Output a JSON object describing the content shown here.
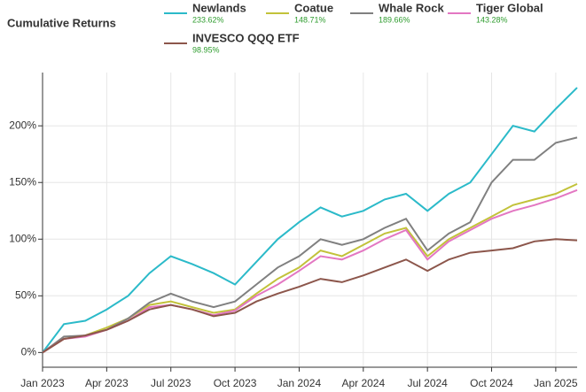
{
  "chart_data": {
    "type": "line",
    "title": "Cumulative Returns",
    "x": [
      "2023-01",
      "2023-02",
      "2023-03",
      "2023-04",
      "2023-05",
      "2023-06",
      "2023-07",
      "2023-08",
      "2023-09",
      "2023-10",
      "2023-11",
      "2023-12",
      "2024-01",
      "2024-02",
      "2024-03",
      "2024-04",
      "2024-05",
      "2024-06",
      "2024-07",
      "2024-08",
      "2024-09",
      "2024-10",
      "2024-11",
      "2024-12",
      "2025-01",
      "2025-02"
    ],
    "xlim": [
      "2023-01",
      "2025-02"
    ],
    "xticks": [
      {
        "value": "2023-01",
        "label": "Jan 2023"
      },
      {
        "value": "2023-04",
        "label": "Apr 2023"
      },
      {
        "value": "2023-07",
        "label": "Jul 2023"
      },
      {
        "value": "2023-10",
        "label": "Oct 2023"
      },
      {
        "value": "2024-01",
        "label": "Jan 2024"
      },
      {
        "value": "2024-04",
        "label": "Apr 2024"
      },
      {
        "value": "2024-07",
        "label": "Jul 2024"
      },
      {
        "value": "2024-10",
        "label": "Oct 2024"
      },
      {
        "value": "2025-01",
        "label": "Jan 2025"
      }
    ],
    "ylim": [
      -13,
      247
    ],
    "yticks": [
      {
        "value": 0,
        "label": "0%"
      },
      {
        "value": 50,
        "label": "50%"
      },
      {
        "value": 100,
        "label": "100%"
      },
      {
        "value": 150,
        "label": "150%"
      },
      {
        "value": 200,
        "label": "200%"
      }
    ],
    "grid": true,
    "series": [
      {
        "name": "Newlands",
        "color": "#2bbac9",
        "final_label": "233.62%",
        "values": [
          0,
          25,
          28,
          38,
          50,
          70,
          85,
          78,
          70,
          60,
          80,
          100,
          115,
          128,
          120,
          125,
          135,
          140,
          125,
          140,
          150,
          175,
          200,
          195,
          215,
          233.62
        ]
      },
      {
        "name": "Coatue",
        "color": "#c2c23a",
        "final_label": "148.71%",
        "values": [
          0,
          12,
          15,
          22,
          30,
          42,
          45,
          40,
          35,
          38,
          52,
          65,
          75,
          90,
          85,
          95,
          105,
          110,
          85,
          100,
          110,
          120,
          130,
          135,
          140,
          148.71
        ]
      },
      {
        "name": "Whale Rock",
        "color": "#808080",
        "final_label": "189.66%",
        "values": [
          0,
          14,
          15,
          20,
          30,
          44,
          52,
          45,
          40,
          45,
          60,
          75,
          85,
          100,
          95,
          100,
          110,
          118,
          90,
          105,
          115,
          150,
          170,
          170,
          185,
          189.66
        ]
      },
      {
        "name": "Tiger Global",
        "color": "#e377c2",
        "final_label": "143.28%",
        "values": [
          0,
          12,
          14,
          20,
          28,
          40,
          42,
          38,
          33,
          37,
          50,
          60,
          72,
          85,
          82,
          90,
          100,
          108,
          82,
          98,
          108,
          118,
          125,
          130,
          136,
          143.28
        ]
      },
      {
        "name": "INVESCO QQQ ETF",
        "color": "#8c564b",
        "final_label": "98.95%",
        "values": [
          0,
          12,
          15,
          20,
          28,
          38,
          42,
          38,
          32,
          35,
          45,
          52,
          58,
          65,
          62,
          68,
          75,
          82,
          72,
          82,
          88,
          90,
          92,
          98,
          100,
          98.95
        ]
      }
    ]
  }
}
